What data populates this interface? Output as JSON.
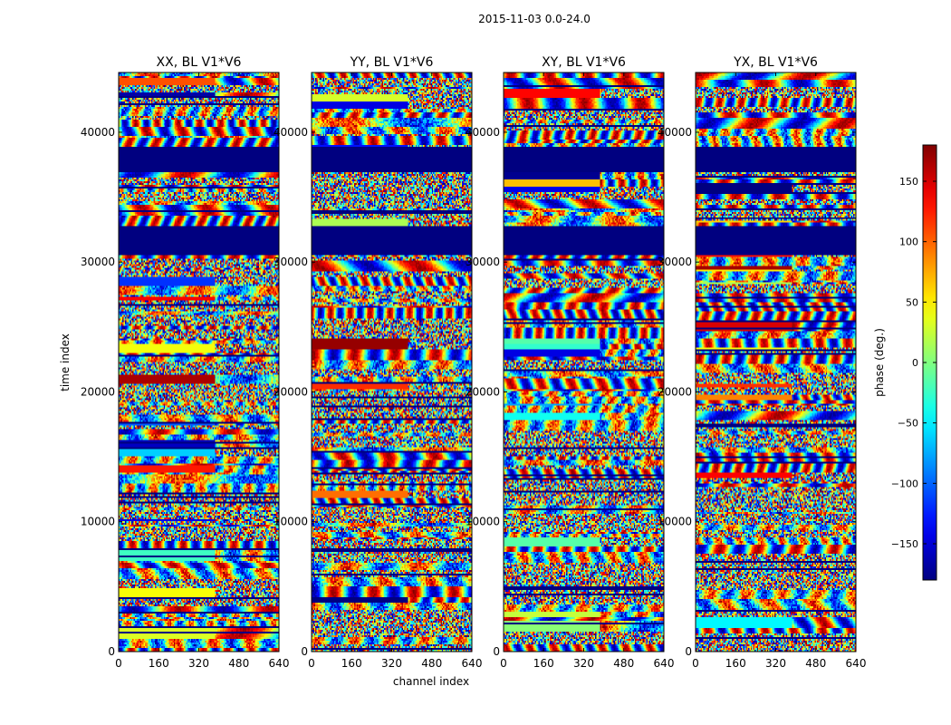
{
  "figure": {
    "suptitle": "2015-11-03 0.0-24.0",
    "colormap": "jet"
  },
  "chart_data": {
    "type": "heatmap",
    "title": "2015-11-03 0.0-24.0",
    "xlabel": "channel index",
    "ylabel": "time index",
    "xlim": [
      0,
      640
    ],
    "ylim": [
      0,
      44600
    ],
    "xticks": [
      0,
      160,
      320,
      480,
      640
    ],
    "yticks": [
      0,
      10000,
      20000,
      30000,
      40000
    ],
    "panels": [
      {
        "title": "XX, BL V1*V6",
        "product": "XX",
        "baseline": "V1*V6"
      },
      {
        "title": "YY, BL V1*V6",
        "product": "YY",
        "baseline": "V1*V6"
      },
      {
        "title": "XY, BL V1*V6",
        "product": "XY",
        "baseline": "V1*V6"
      },
      {
        "title": "YX, BL V1*V6",
        "product": "YX",
        "baseline": "V1*V6"
      }
    ],
    "flagged_time_ranges": [
      [
        30500,
        32800
      ],
      [
        36900,
        38900
      ]
    ],
    "colorbar": {
      "label": "phase (deg.)",
      "vmin": -180,
      "vmax": 180,
      "ticks": [
        -150,
        -100,
        -50,
        0,
        50,
        100,
        150
      ],
      "tick_labels": [
        "−150",
        "−100",
        "−50",
        "0",
        "50",
        "100",
        "150"
      ]
    }
  }
}
